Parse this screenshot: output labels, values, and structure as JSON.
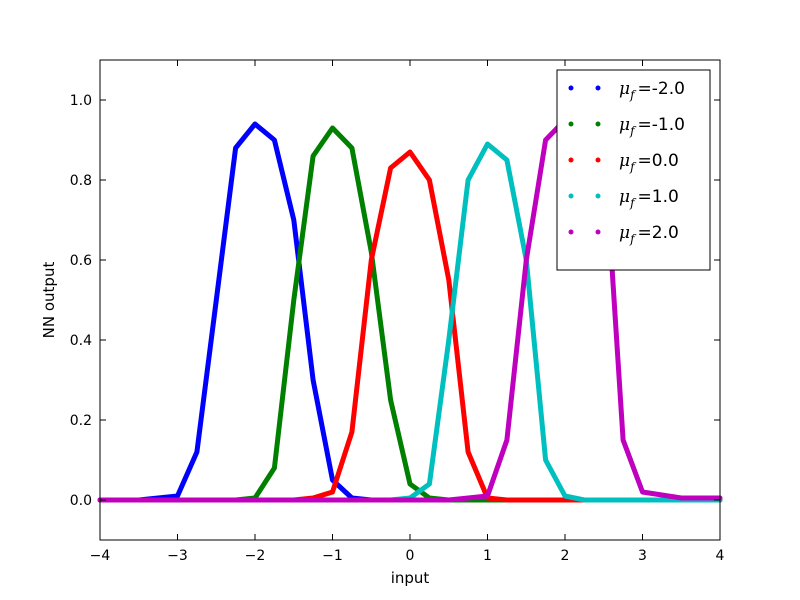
{
  "chart_data": {
    "type": "line",
    "xlabel": "input",
    "ylabel": "NN output",
    "xlim": [
      -4,
      4
    ],
    "ylim": [
      -0.1,
      1.1
    ],
    "xticks": [
      -4,
      -3,
      -2,
      -1,
      0,
      1,
      2,
      3,
      4
    ],
    "xtick_labels": [
      "−4",
      "−3",
      "−2",
      "−1",
      "0",
      "1",
      "2",
      "3",
      "4"
    ],
    "yticks": [
      0.0,
      0.2,
      0.4,
      0.6,
      0.8,
      1.0
    ],
    "ytick_labels": [
      "0.0",
      "0.2",
      "0.4",
      "0.6",
      "0.8",
      "1.0"
    ],
    "grid": false,
    "legend_position": "top-right",
    "x": [
      -4.0,
      -3.5,
      -3.0,
      -2.75,
      -2.5,
      -2.25,
      -2.0,
      -1.75,
      -1.5,
      -1.25,
      -1.0,
      -0.75,
      -0.5,
      -0.25,
      0.0,
      0.25,
      0.5,
      0.75,
      1.0,
      1.25,
      1.5,
      1.75,
      2.0,
      2.25,
      2.5,
      2.75,
      3.0,
      3.5,
      4.0
    ],
    "series": [
      {
        "name_prefix": "μ",
        "name_sub": "f",
        "name_value": "-2.0",
        "color": "#0000ff",
        "y": [
          0.0,
          0.0,
          0.01,
          0.12,
          0.5,
          0.88,
          0.94,
          0.9,
          0.7,
          0.3,
          0.05,
          0.005,
          0.0,
          0.0,
          0.0,
          0.0,
          0.0,
          0.0,
          0.0,
          0.0,
          0.0,
          0.0,
          0.0,
          0.0,
          0.0,
          0.0,
          0.0,
          0.0,
          0.0
        ]
      },
      {
        "name_prefix": "μ",
        "name_sub": "f",
        "name_value": "-1.0",
        "color": "#008000",
        "y": [
          0.0,
          0.0,
          0.0,
          0.0,
          0.0,
          0.0,
          0.005,
          0.08,
          0.5,
          0.86,
          0.93,
          0.88,
          0.62,
          0.25,
          0.04,
          0.005,
          0.0,
          0.0,
          0.0,
          0.0,
          0.0,
          0.0,
          0.0,
          0.0,
          0.0,
          0.0,
          0.0,
          0.0,
          0.0
        ]
      },
      {
        "name_prefix": "μ",
        "name_sub": "f",
        "name_value": "0.0",
        "color": "#ff0000",
        "y": [
          0.0,
          0.0,
          0.0,
          0.0,
          0.0,
          0.0,
          0.0,
          0.0,
          0.0,
          0.005,
          0.02,
          0.17,
          0.6,
          0.83,
          0.87,
          0.8,
          0.55,
          0.12,
          0.005,
          0.0,
          0.0,
          0.0,
          0.0,
          0.0,
          0.0,
          0.0,
          0.0,
          0.0,
          0.0
        ]
      },
      {
        "name_prefix": "μ",
        "name_sub": "f",
        "name_value": "1.0",
        "color": "#00bfbf",
        "y": [
          0.0,
          0.0,
          0.0,
          0.0,
          0.0,
          0.0,
          0.0,
          0.0,
          0.0,
          0.0,
          0.0,
          0.0,
          0.0,
          0.0,
          0.005,
          0.04,
          0.4,
          0.8,
          0.89,
          0.85,
          0.6,
          0.1,
          0.01,
          0.0,
          0.0,
          0.0,
          0.0,
          0.0,
          0.0
        ]
      },
      {
        "name_prefix": "μ",
        "name_sub": "f",
        "name_value": "2.0",
        "color": "#bf00bf",
        "y": [
          0.0,
          0.0,
          0.0,
          0.0,
          0.0,
          0.0,
          0.0,
          0.0,
          0.0,
          0.0,
          0.0,
          0.0,
          0.0,
          0.0,
          0.0,
          0.0,
          0.0,
          0.005,
          0.01,
          0.15,
          0.6,
          0.9,
          0.95,
          0.95,
          0.9,
          0.15,
          0.02,
          0.005,
          0.005
        ]
      }
    ]
  }
}
